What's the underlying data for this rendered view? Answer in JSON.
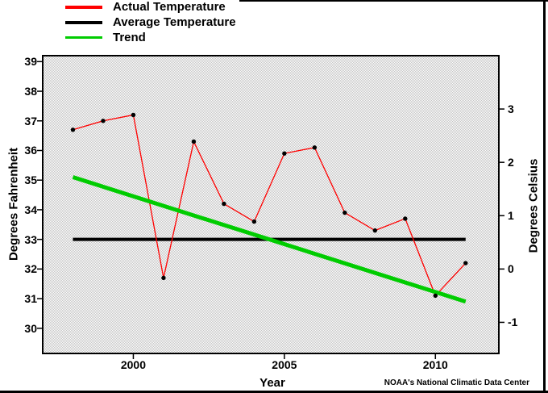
{
  "page": {
    "credit": "NOAA's National Climatic Data Center"
  },
  "legend": {
    "position": "top-left",
    "items": [
      {
        "label": "Actual Temperature",
        "color": "#ff0000",
        "thickness": 4
      },
      {
        "label": "Average Temperature",
        "color": "#000000",
        "thickness": 4
      },
      {
        "label": "Trend",
        "color": "#00cc00",
        "thickness": 3
      }
    ]
  },
  "chart_data": {
    "type": "line",
    "title": "",
    "xlabel": "Year",
    "ylabel_left": "Degrees Fahrenheit",
    "ylabel_right": "Degrees Celsius",
    "x": [
      1998,
      1999,
      2000,
      2001,
      2002,
      2003,
      2004,
      2005,
      2006,
      2007,
      2008,
      2009,
      2010,
      2011
    ],
    "series": [
      {
        "name": "Actual Temperature",
        "color": "#ff0000",
        "marker": "black-dot",
        "values": [
          36.7,
          37.0,
          37.2,
          31.7,
          36.3,
          34.2,
          33.6,
          35.9,
          36.1,
          33.9,
          33.3,
          33.7,
          31.1,
          32.2
        ]
      },
      {
        "name": "Average Temperature",
        "color": "#000000",
        "constant": 33.0
      },
      {
        "name": "Trend",
        "color": "#00cc00",
        "trend": {
          "start": [
            1998,
            35.1
          ],
          "end": [
            2011,
            30.9
          ]
        }
      }
    ],
    "xlim": [
      1997,
      2012.1
    ],
    "ylim": [
      29.15,
      39.2
    ],
    "x_ticks": [
      2000,
      2005,
      2010
    ],
    "y_ticks_fahrenheit": [
      30,
      31,
      32,
      33,
      34,
      35,
      36,
      37,
      38,
      39
    ],
    "y_ticks_celsius": [
      -1,
      0,
      1,
      2,
      3
    ],
    "celsius_conversion": "C = (F - 32) / 1.8",
    "grid": false,
    "plot_background": "light-gray-dither",
    "legend_position": "top-left"
  }
}
